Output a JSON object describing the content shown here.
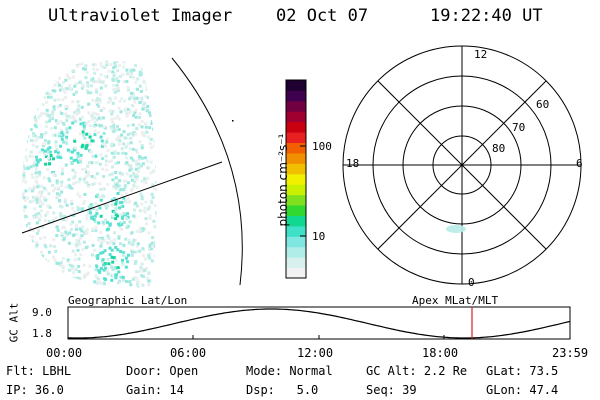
{
  "header": {
    "instrument": "Ultraviolet Imager",
    "date": "02 Oct 07",
    "time": "19:22:40 UT"
  },
  "colorbar": {
    "label": "photon cm⁻²s⁻¹",
    "ticks": [
      {
        "label": "100",
        "value": 100
      },
      {
        "label": "10",
        "value": 10
      }
    ],
    "colors": [
      "#f2f2f2",
      "#d8f0ee",
      "#b0ece8",
      "#7fe6e0",
      "#3fe0c8",
      "#10d890",
      "#30d830",
      "#80e020",
      "#c8f000",
      "#f0f000",
      "#f0c000",
      "#f09000",
      "#f06000",
      "#e82020",
      "#c80010",
      "#a00030",
      "#700040",
      "#400050",
      "#200030"
    ]
  },
  "polar_grid": {
    "mlt_labels": {
      "top": "12",
      "left": "18",
      "right": "6",
      "bottom": "0"
    },
    "mlat_labels": [
      "80",
      "70",
      "60"
    ]
  },
  "orbit_plot": {
    "left_title": "Geographic Lat/Lon",
    "right_title": "Apex MLat/MLT",
    "ylabel": "GC Alt",
    "yticks": [
      "9.0",
      "1.8"
    ],
    "xticks": [
      "00:00",
      "06:00",
      "12:00",
      "18:00",
      "23:59"
    ]
  },
  "status": {
    "flt_label": "Flt:",
    "flt_value": "LBHL",
    "ip_label": "IP:",
    "ip_value": "36.0",
    "door_label": "Door:",
    "door_value": "Open",
    "gain_label": "Gain:",
    "gain_value": "14",
    "mode_label": "Mode:",
    "mode_value": "Normal",
    "dsp_label": "Dsp:",
    "dsp_value": "5.0",
    "gcalt_label": "GC Alt:",
    "gcalt_value": "2.2 Re",
    "seq_label": "Seq:",
    "seq_value": "39",
    "glat_label": "GLat:",
    "glat_value": "73.5",
    "glon_label": "GLon:",
    "glon_value": "47.4"
  }
}
